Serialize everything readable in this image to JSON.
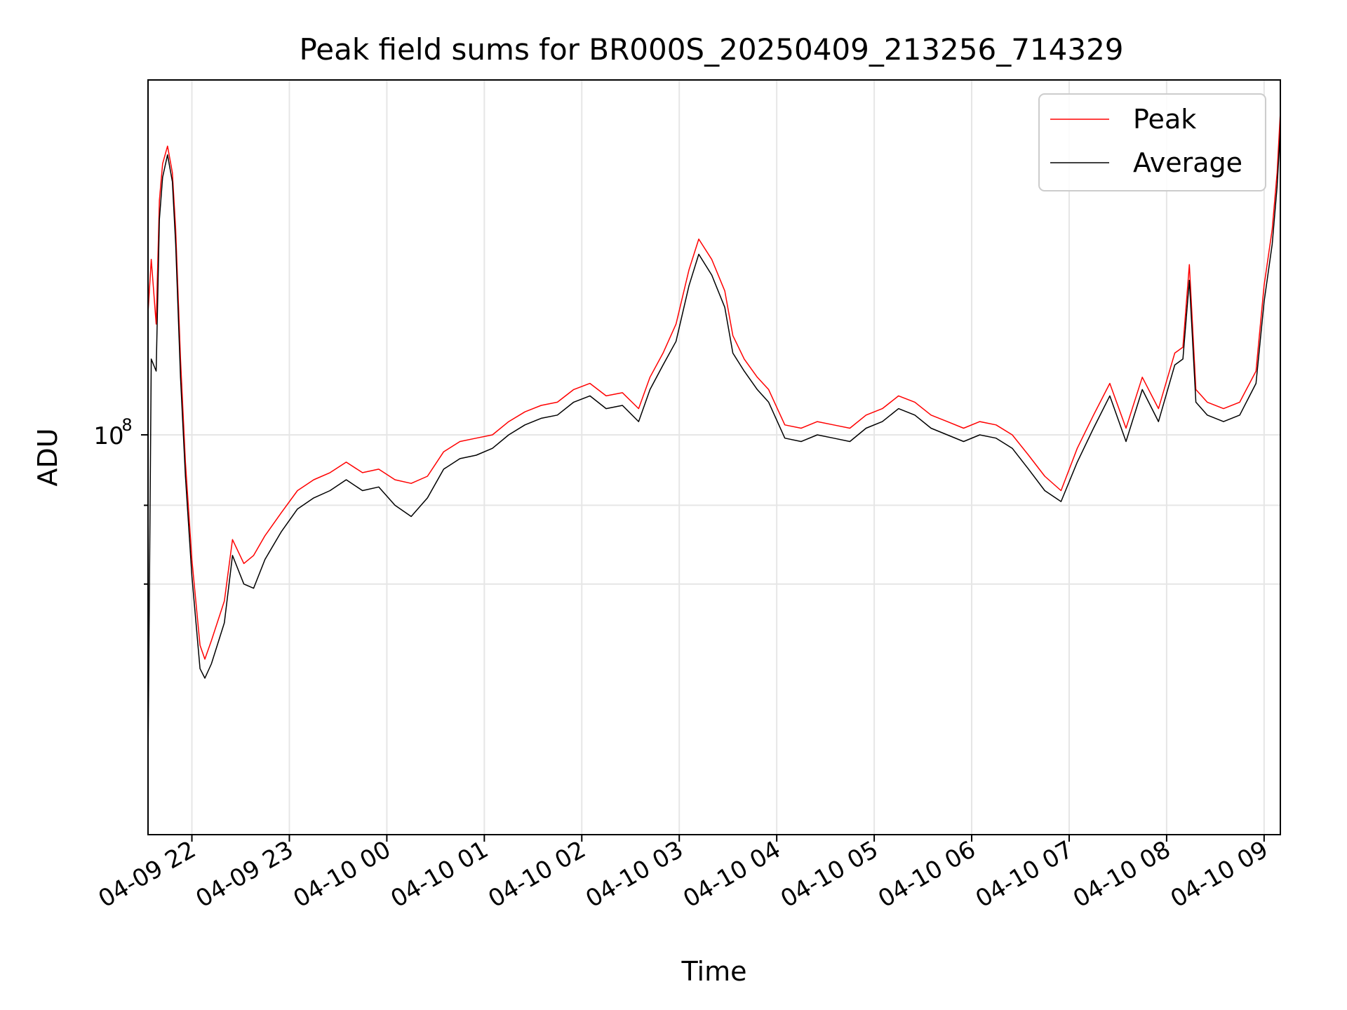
{
  "chart_data": {
    "type": "line",
    "title": "Peak field sums for BR000S_20250409_213256_714329",
    "xlabel": "Time",
    "ylabel": "ADU",
    "y_scale": "log",
    "ylim": [
      55000000,
      170000000
    ],
    "xlim": [
      "2025-04-09T21:33:00",
      "2025-04-10T09:10:00"
    ],
    "grid": true,
    "legend_position": "upper-right",
    "x_ticks": [
      {
        "value": "2025-04-09T22:00:00",
        "label": "04-09 22"
      },
      {
        "value": "2025-04-09T23:00:00",
        "label": "04-09 23"
      },
      {
        "value": "2025-04-10T00:00:00",
        "label": "04-10 00"
      },
      {
        "value": "2025-04-10T01:00:00",
        "label": "04-10 01"
      },
      {
        "value": "2025-04-10T02:00:00",
        "label": "04-10 02"
      },
      {
        "value": "2025-04-10T03:00:00",
        "label": "04-10 03"
      },
      {
        "value": "2025-04-10T04:00:00",
        "label": "04-10 04"
      },
      {
        "value": "2025-04-10T05:00:00",
        "label": "04-10 05"
      },
      {
        "value": "2025-04-10T06:00:00",
        "label": "04-10 06"
      },
      {
        "value": "2025-04-10T07:00:00",
        "label": "04-10 07"
      },
      {
        "value": "2025-04-10T08:00:00",
        "label": "04-10 08"
      },
      {
        "value": "2025-04-10T09:00:00",
        "label": "04-10 09"
      }
    ],
    "y_ticks": [
      {
        "value": 100000000,
        "label_base": "10",
        "label_exp": "8",
        "major": true
      },
      {
        "value": 90000000,
        "major": false
      },
      {
        "value": 80000000,
        "major": false
      }
    ],
    "series": [
      {
        "name": "Peak",
        "color": "#ff0000",
        "points": [
          [
            "2025-04-09T21:33:00",
            120000000.0
          ],
          [
            "2025-04-09T21:35:00",
            130000000.0
          ],
          [
            "2025-04-09T21:38:00",
            118000000.0
          ],
          [
            "2025-04-09T21:40:00",
            142000000.0
          ],
          [
            "2025-04-09T21:42:00",
            150000000.0
          ],
          [
            "2025-04-09T21:45:00",
            154000000.0
          ],
          [
            "2025-04-09T21:48:00",
            148000000.0
          ],
          [
            "2025-04-09T21:50:00",
            136000000.0
          ],
          [
            "2025-04-09T21:53:00",
            112000000.0
          ],
          [
            "2025-04-09T21:56:00",
            96000000.0
          ],
          [
            "2025-04-09T22:00:00",
            83000000.0
          ],
          [
            "2025-04-09T22:05:00",
            73000000.0
          ],
          [
            "2025-04-09T22:08:00",
            71500000.0
          ],
          [
            "2025-04-09T22:12:00",
            73500000.0
          ],
          [
            "2025-04-09T22:20:00",
            78000000.0
          ],
          [
            "2025-04-09T22:25:00",
            85500000.0
          ],
          [
            "2025-04-09T22:32:00",
            82500000.0
          ],
          [
            "2025-04-09T22:38:00",
            83500000.0
          ],
          [
            "2025-04-09T22:45:00",
            86000000.0
          ],
          [
            "2025-04-09T22:55:00",
            89000000.0
          ],
          [
            "2025-04-09T23:05:00",
            92000000.0
          ],
          [
            "2025-04-09T23:15:00",
            93500000.0
          ],
          [
            "2025-04-09T23:25:00",
            94500000.0
          ],
          [
            "2025-04-09T23:35:00",
            96000000.0
          ],
          [
            "2025-04-09T23:45:00",
            94500000.0
          ],
          [
            "2025-04-09T23:55:00",
            95000000.0
          ],
          [
            "2025-04-10T00:05:00",
            93500000.0
          ],
          [
            "2025-04-10T00:15:00",
            93000000.0
          ],
          [
            "2025-04-10T00:25:00",
            94000000.0
          ],
          [
            "2025-04-10T00:35:00",
            97500000.0
          ],
          [
            "2025-04-10T00:45:00",
            99000000.0
          ],
          [
            "2025-04-10T00:55:00",
            99500000.0
          ],
          [
            "2025-04-10T01:05:00",
            100000000.0
          ],
          [
            "2025-04-10T01:15:00",
            102000000.0
          ],
          [
            "2025-04-10T01:25:00",
            103500000.0
          ],
          [
            "2025-04-10T01:35:00",
            104500000.0
          ],
          [
            "2025-04-10T01:45:00",
            105000000.0
          ],
          [
            "2025-04-10T01:55:00",
            107000000.0
          ],
          [
            "2025-04-10T02:05:00",
            108000000.0
          ],
          [
            "2025-04-10T02:15:00",
            106000000.0
          ],
          [
            "2025-04-10T02:25:00",
            106500000.0
          ],
          [
            "2025-04-10T02:35:00",
            104000000.0
          ],
          [
            "2025-04-10T02:42:00",
            109000000.0
          ],
          [
            "2025-04-10T02:50:00",
            113000000.0
          ],
          [
            "2025-04-10T02:58:00",
            118000000.0
          ],
          [
            "2025-04-10T03:06:00",
            128000000.0
          ],
          [
            "2025-04-10T03:12:00",
            134000000.0
          ],
          [
            "2025-04-10T03:20:00",
            130000000.0
          ],
          [
            "2025-04-10T03:28:00",
            124000000.0
          ],
          [
            "2025-04-10T03:33:00",
            116000000.0
          ],
          [
            "2025-04-10T03:40:00",
            112000000.0
          ],
          [
            "2025-04-10T03:48:00",
            109000000.0
          ],
          [
            "2025-04-10T03:55:00",
            107000000.0
          ],
          [
            "2025-04-10T04:05:00",
            101500000.0
          ],
          [
            "2025-04-10T04:15:00",
            101000000.0
          ],
          [
            "2025-04-10T04:25:00",
            102000000.0
          ],
          [
            "2025-04-10T04:35:00",
            101500000.0
          ],
          [
            "2025-04-10T04:45:00",
            101000000.0
          ],
          [
            "2025-04-10T04:55:00",
            103000000.0
          ],
          [
            "2025-04-10T05:05:00",
            104000000.0
          ],
          [
            "2025-04-10T05:15:00",
            106000000.0
          ],
          [
            "2025-04-10T05:25:00",
            105000000.0
          ],
          [
            "2025-04-10T05:35:00",
            103000000.0
          ],
          [
            "2025-04-10T05:45:00",
            102000000.0
          ],
          [
            "2025-04-10T05:55:00",
            101000000.0
          ],
          [
            "2025-04-10T06:05:00",
            102000000.0
          ],
          [
            "2025-04-10T06:15:00",
            101500000.0
          ],
          [
            "2025-04-10T06:25:00",
            100000000.0
          ],
          [
            "2025-04-10T06:35:00",
            97000000.0
          ],
          [
            "2025-04-10T06:45:00",
            94000000.0
          ],
          [
            "2025-04-10T06:55:00",
            92000000.0
          ],
          [
            "2025-04-10T07:05:00",
            98000000.0
          ],
          [
            "2025-04-10T07:15:00",
            103000000.0
          ],
          [
            "2025-04-10T07:25:00",
            108000000.0
          ],
          [
            "2025-04-10T07:35:00",
            101000000.0
          ],
          [
            "2025-04-10T07:45:00",
            109000000.0
          ],
          [
            "2025-04-10T07:55:00",
            104000000.0
          ],
          [
            "2025-04-10T08:05:00",
            113000000.0
          ],
          [
            "2025-04-10T08:10:00",
            114000000.0
          ],
          [
            "2025-04-10T08:14:00",
            129000000.0
          ],
          [
            "2025-04-10T08:18:00",
            107000000.0
          ],
          [
            "2025-04-10T08:25:00",
            105000000.0
          ],
          [
            "2025-04-10T08:35:00",
            104000000.0
          ],
          [
            "2025-04-10T08:45:00",
            105000000.0
          ],
          [
            "2025-04-10T08:55:00",
            110000000.0
          ],
          [
            "2025-04-10T09:00:00",
            125000000.0
          ],
          [
            "2025-04-10T09:05:00",
            136000000.0
          ],
          [
            "2025-04-10T09:08:00",
            148000000.0
          ],
          [
            "2025-04-10T09:10:00",
            162000000.0
          ]
        ]
      },
      {
        "name": "Average",
        "color": "#000000",
        "points": [
          [
            "2025-04-09T21:33:00",
            61000000.0
          ],
          [
            "2025-04-09T21:35:00",
            112000000.0
          ],
          [
            "2025-04-09T21:38:00",
            110000000.0
          ],
          [
            "2025-04-09T21:40:00",
            138000000.0
          ],
          [
            "2025-04-09T21:42:00",
            147000000.0
          ],
          [
            "2025-04-09T21:45:00",
            152000000.0
          ],
          [
            "2025-04-09T21:48:00",
            146000000.0
          ],
          [
            "2025-04-09T21:50:00",
            133000000.0
          ],
          [
            "2025-04-09T21:53:00",
            109000000.0
          ],
          [
            "2025-04-09T21:56:00",
            94000000.0
          ],
          [
            "2025-04-09T22:00:00",
            81000000.0
          ],
          [
            "2025-04-09T22:05:00",
            70500000.0
          ],
          [
            "2025-04-09T22:08:00",
            69500000.0
          ],
          [
            "2025-04-09T22:12:00",
            71000000.0
          ],
          [
            "2025-04-09T22:20:00",
            75500000.0
          ],
          [
            "2025-04-09T22:25:00",
            83500000.0
          ],
          [
            "2025-04-09T22:32:00",
            80000000.0
          ],
          [
            "2025-04-09T22:38:00",
            79500000.0
          ],
          [
            "2025-04-09T22:45:00",
            83000000.0
          ],
          [
            "2025-04-09T22:55:00",
            86500000.0
          ],
          [
            "2025-04-09T23:05:00",
            89500000.0
          ],
          [
            "2025-04-09T23:15:00",
            91000000.0
          ],
          [
            "2025-04-09T23:25:00",
            92000000.0
          ],
          [
            "2025-04-09T23:35:00",
            93500000.0
          ],
          [
            "2025-04-09T23:45:00",
            92000000.0
          ],
          [
            "2025-04-09T23:55:00",
            92500000.0
          ],
          [
            "2025-04-10T00:05:00",
            90000000.0
          ],
          [
            "2025-04-10T00:15:00",
            88500000.0
          ],
          [
            "2025-04-10T00:25:00",
            91000000.0
          ],
          [
            "2025-04-10T00:35:00",
            95000000.0
          ],
          [
            "2025-04-10T00:45:00",
            96500000.0
          ],
          [
            "2025-04-10T00:55:00",
            97000000.0
          ],
          [
            "2025-04-10T01:05:00",
            98000000.0
          ],
          [
            "2025-04-10T01:15:00",
            100000000.0
          ],
          [
            "2025-04-10T01:25:00",
            101500000.0
          ],
          [
            "2025-04-10T01:35:00",
            102500000.0
          ],
          [
            "2025-04-10T01:45:00",
            103000000.0
          ],
          [
            "2025-04-10T01:55:00",
            105000000.0
          ],
          [
            "2025-04-10T02:05:00",
            106000000.0
          ],
          [
            "2025-04-10T02:15:00",
            104000000.0
          ],
          [
            "2025-04-10T02:25:00",
            104500000.0
          ],
          [
            "2025-04-10T02:35:00",
            102000000.0
          ],
          [
            "2025-04-10T02:42:00",
            107000000.0
          ],
          [
            "2025-04-10T02:50:00",
            111000000.0
          ],
          [
            "2025-04-10T02:58:00",
            115000000.0
          ],
          [
            "2025-04-10T03:06:00",
            125000000.0
          ],
          [
            "2025-04-10T03:12:00",
            131000000.0
          ],
          [
            "2025-04-10T03:20:00",
            127000000.0
          ],
          [
            "2025-04-10T03:28:00",
            121000000.0
          ],
          [
            "2025-04-10T03:33:00",
            113000000.0
          ],
          [
            "2025-04-10T03:40:00",
            110000000.0
          ],
          [
            "2025-04-10T03:48:00",
            107000000.0
          ],
          [
            "2025-04-10T03:55:00",
            105000000.0
          ],
          [
            "2025-04-10T04:05:00",
            99500000.0
          ],
          [
            "2025-04-10T04:15:00",
            99000000.0
          ],
          [
            "2025-04-10T04:25:00",
            100000000.0
          ],
          [
            "2025-04-10T04:35:00",
            99500000.0
          ],
          [
            "2025-04-10T04:45:00",
            99000000.0
          ],
          [
            "2025-04-10T04:55:00",
            101000000.0
          ],
          [
            "2025-04-10T05:05:00",
            102000000.0
          ],
          [
            "2025-04-10T05:15:00",
            104000000.0
          ],
          [
            "2025-04-10T05:25:00",
            103000000.0
          ],
          [
            "2025-04-10T05:35:00",
            101000000.0
          ],
          [
            "2025-04-10T05:45:00",
            100000000.0
          ],
          [
            "2025-04-10T05:55:00",
            99000000.0
          ],
          [
            "2025-04-10T06:05:00",
            100000000.0
          ],
          [
            "2025-04-10T06:15:00",
            99500000.0
          ],
          [
            "2025-04-10T06:25:00",
            98000000.0
          ],
          [
            "2025-04-10T06:35:00",
            95000000.0
          ],
          [
            "2025-04-10T06:45:00",
            92000000.0
          ],
          [
            "2025-04-10T06:55:00",
            90500000.0
          ],
          [
            "2025-04-10T07:05:00",
            96000000.0
          ],
          [
            "2025-04-10T07:15:00",
            101000000.0
          ],
          [
            "2025-04-10T07:25:00",
            106000000.0
          ],
          [
            "2025-04-10T07:35:00",
            99000000.0
          ],
          [
            "2025-04-10T07:45:00",
            107000000.0
          ],
          [
            "2025-04-10T07:55:00",
            102000000.0
          ],
          [
            "2025-04-10T08:05:00",
            111000000.0
          ],
          [
            "2025-04-10T08:10:00",
            112000000.0
          ],
          [
            "2025-04-10T08:14:00",
            126000000.0
          ],
          [
            "2025-04-10T08:18:00",
            105000000.0
          ],
          [
            "2025-04-10T08:25:00",
            103000000.0
          ],
          [
            "2025-04-10T08:35:00",
            102000000.0
          ],
          [
            "2025-04-10T08:45:00",
            103000000.0
          ],
          [
            "2025-04-10T08:55:00",
            108000000.0
          ],
          [
            "2025-04-10T09:00:00",
            122000000.0
          ],
          [
            "2025-04-10T09:05:00",
            133000000.0
          ],
          [
            "2025-04-10T09:08:00",
            145000000.0
          ],
          [
            "2025-04-10T09:10:00",
            158000000.0
          ]
        ]
      }
    ]
  }
}
